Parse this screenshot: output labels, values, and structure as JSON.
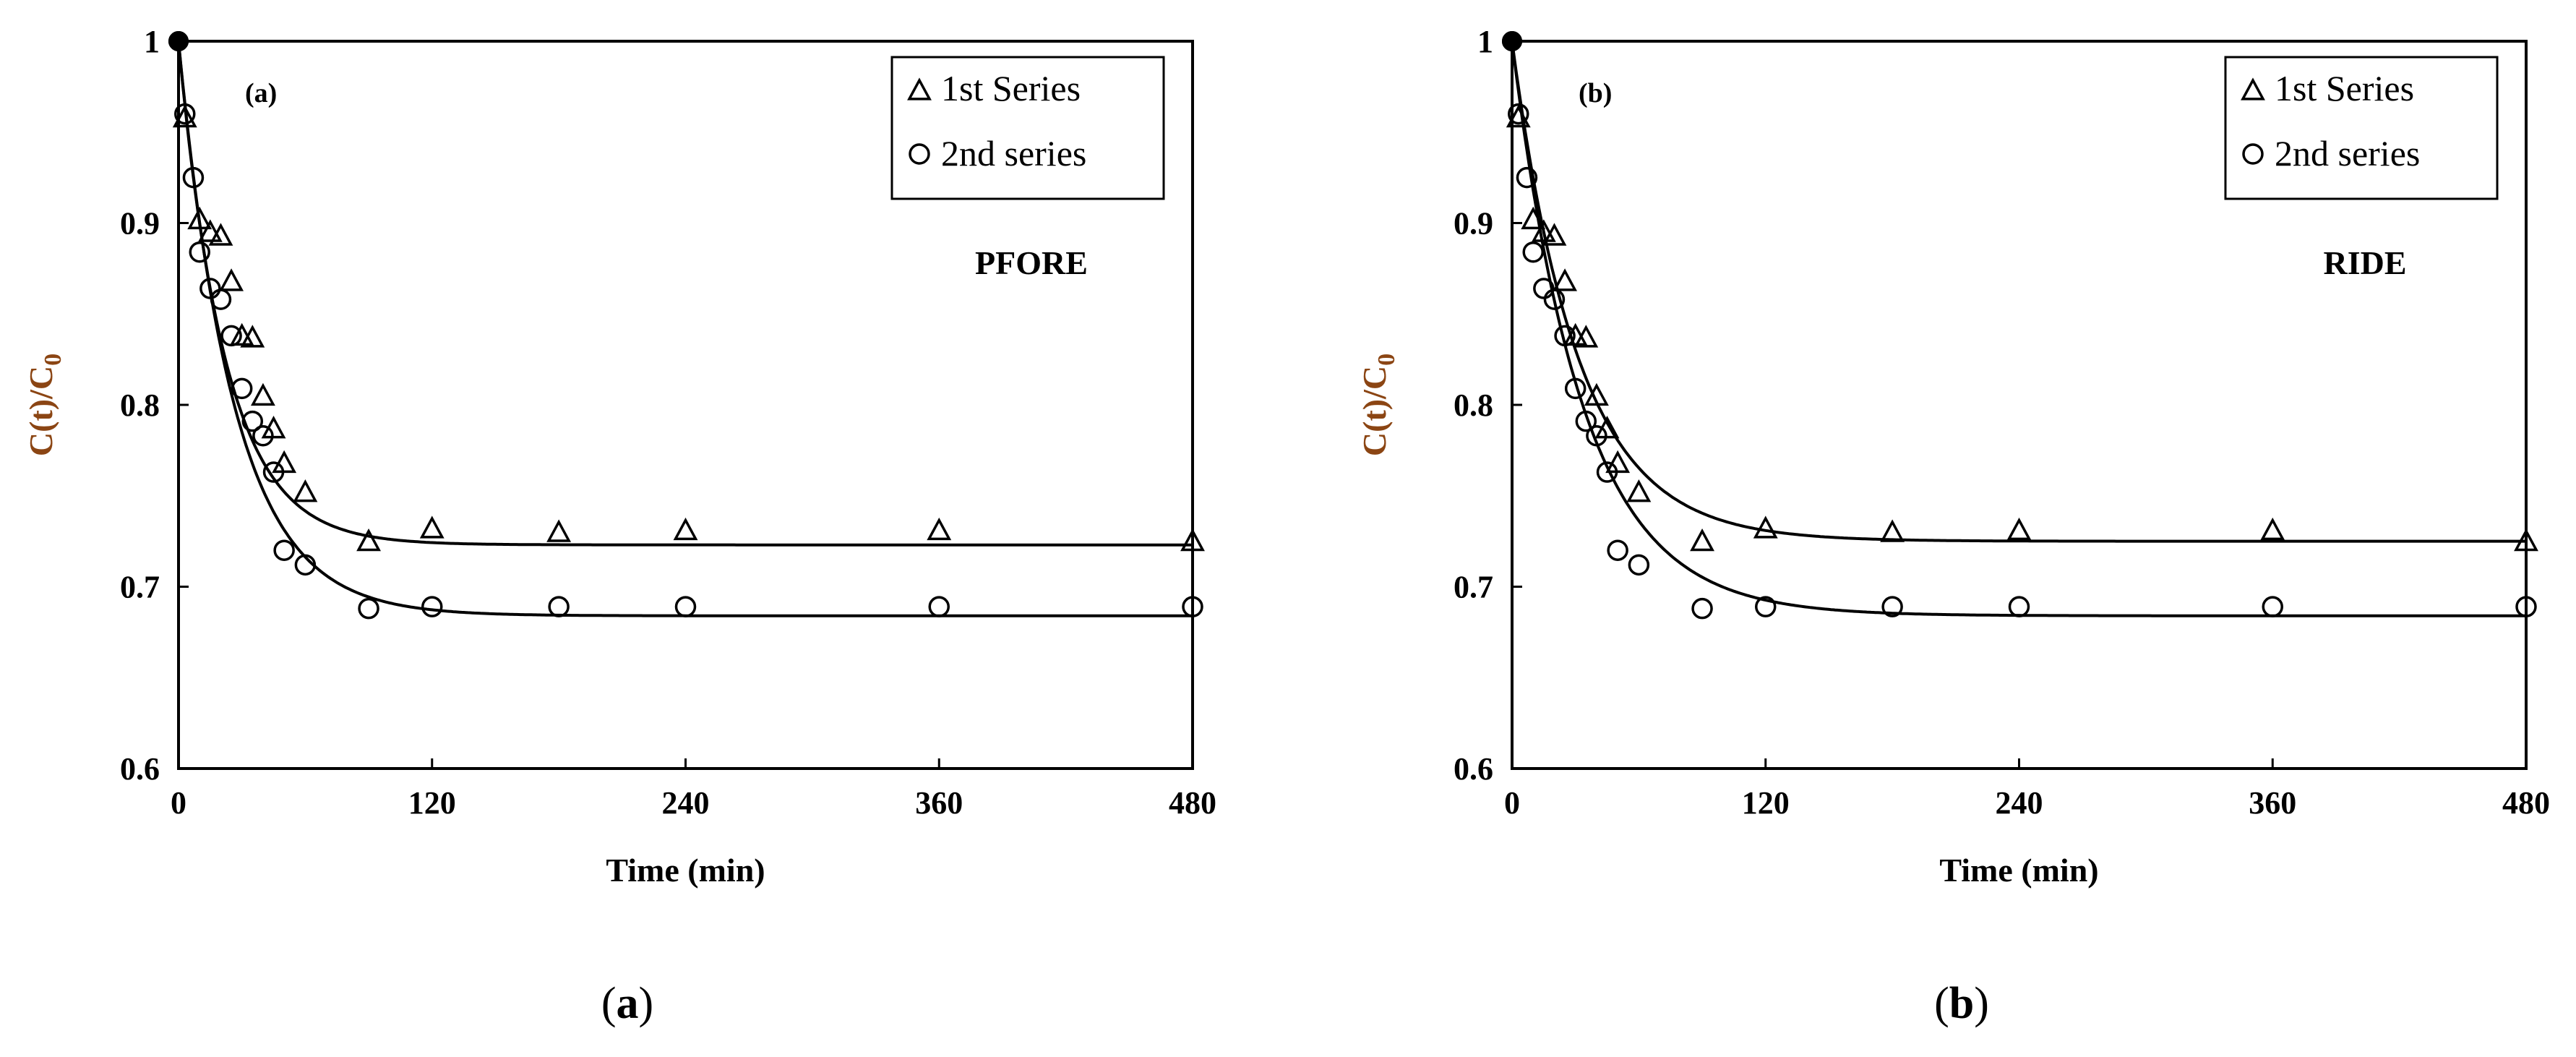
{
  "chart_data": [
    {
      "type": "scatter",
      "panel_label": "(a)",
      "caption_open": "(",
      "caption_letter": "a",
      "caption_close": ")",
      "annotation": "PFORE",
      "xlabel": "Time (min)",
      "ylabel_main": "C(t)/C",
      "ylabel_sub": "0",
      "xlim": [
        0,
        480
      ],
      "ylim": [
        0.6,
        1.0
      ],
      "xticks": [
        "0",
        "120",
        "240",
        "360",
        "480"
      ],
      "yticks": [
        "0.6",
        "0.7",
        "0.8",
        "0.9",
        "1"
      ],
      "grid": false,
      "legend_position": "top-right",
      "series": [
        {
          "name": "1st Series",
          "marker": "triangle",
          "x": [
            0,
            3,
            10,
            15,
            20,
            25,
            30,
            35,
            40,
            45,
            50,
            60,
            90,
            120,
            180,
            240,
            360,
            480
          ],
          "y": [
            1.0,
            0.958,
            0.902,
            0.895,
            0.893,
            0.868,
            0.838,
            0.837,
            0.805,
            0.787,
            0.768,
            0.752,
            0.725,
            0.732,
            0.73,
            0.731,
            0.731,
            0.725
          ]
        },
        {
          "name": "2nd series",
          "marker": "circle",
          "x": [
            0,
            3,
            7,
            10,
            15,
            20,
            25,
            30,
            35,
            40,
            45,
            50,
            60,
            90,
            120,
            180,
            240,
            360,
            480
          ],
          "y": [
            1.0,
            0.96,
            0.925,
            0.884,
            0.864,
            0.858,
            0.838,
            0.809,
            0.791,
            0.783,
            0.763,
            0.72,
            0.712,
            0.688,
            0.689,
            0.689,
            0.689,
            0.689,
            0.689
          ]
        }
      ],
      "fit_curves": [
        {
          "marker_series": "1st Series",
          "y0": 1.0,
          "yinf": 0.723,
          "k": 0.045
        },
        {
          "marker_series": "2nd series",
          "y0": 1.0,
          "yinf": 0.684,
          "k": 0.038
        }
      ]
    },
    {
      "type": "scatter",
      "panel_label": "(b)",
      "caption_open": "(",
      "caption_letter": "b",
      "caption_close": ")",
      "annotation": "RIDE",
      "xlabel": "Time (min)",
      "ylabel_main": "C(t)/C",
      "ylabel_sub": "0",
      "xlim": [
        0,
        480
      ],
      "ylim": [
        0.6,
        1.0
      ],
      "xticks": [
        "0",
        "120",
        "240",
        "360",
        "480"
      ],
      "yticks": [
        "0.6",
        "0.7",
        "0.8",
        "0.9",
        "1"
      ],
      "grid": false,
      "legend_position": "top-right",
      "series": [
        {
          "name": "1st Series",
          "marker": "triangle",
          "x": [
            0,
            3,
            10,
            15,
            20,
            25,
            30,
            35,
            40,
            45,
            50,
            60,
            90,
            120,
            180,
            240,
            360,
            480
          ],
          "y": [
            1.0,
            0.958,
            0.902,
            0.895,
            0.893,
            0.868,
            0.838,
            0.837,
            0.805,
            0.787,
            0.768,
            0.752,
            0.725,
            0.732,
            0.73,
            0.731,
            0.731,
            0.725
          ]
        },
        {
          "name": "2nd series",
          "marker": "circle",
          "x": [
            0,
            3,
            7,
            10,
            15,
            20,
            25,
            30,
            35,
            40,
            45,
            50,
            60,
            90,
            120,
            180,
            240,
            360,
            480
          ],
          "y": [
            1.0,
            0.96,
            0.925,
            0.884,
            0.864,
            0.858,
            0.838,
            0.809,
            0.791,
            0.783,
            0.763,
            0.72,
            0.712,
            0.688,
            0.689,
            0.689,
            0.689,
            0.689,
            0.689
          ]
        }
      ],
      "fit_curves": [
        {
          "marker_series": "1st Series",
          "y0": 1.0,
          "yinf": 0.725,
          "k": 0.032
        },
        {
          "marker_series": "2nd series",
          "y0": 1.0,
          "yinf": 0.684,
          "k": 0.03
        }
      ]
    }
  ]
}
